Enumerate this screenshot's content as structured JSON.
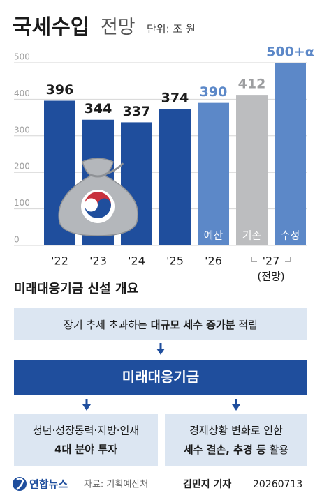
{
  "chart_data": {
    "type": "bar",
    "title": "국세수입",
    "title_light": "전망",
    "unit": "단위: 조 원",
    "categories": [
      "'22",
      "'23",
      "'24",
      "'25",
      "'26",
      null,
      null
    ],
    "group_label": "'27",
    "group_sublabel": "(전망)",
    "bar_labels": [
      null,
      null,
      null,
      null,
      "예산",
      "기존",
      "수정"
    ],
    "values": [
      396,
      344,
      337,
      374,
      390,
      412,
      500
    ],
    "value_labels": [
      "396",
      "344",
      "337",
      "374",
      "390",
      "412",
      "500+α"
    ],
    "colors": [
      "#1f4e9d",
      "#1f4e9d",
      "#1f4e9d",
      "#1f4e9d",
      "#5c88c8",
      "#bcbdbf",
      "#5c88c8"
    ],
    "label_colors": [
      "#1c1c1c",
      "#1c1c1c",
      "#1c1c1c",
      "#1c1c1c",
      "#5c88c8",
      "#9d9ea0",
      "#5c88c8"
    ],
    "ylim": [
      0,
      500
    ],
    "yticks": [
      0,
      100,
      200,
      300,
      400,
      500
    ],
    "grid": true
  },
  "overview": {
    "heading": "미래대응기금 신설 개요",
    "source_box": [
      "장기 추세 초과하는 ",
      "대규모 세수 증가분",
      " 적립"
    ],
    "fund_box": "미래대응기금",
    "left_box": [
      "청년·성장동력·지방·인재",
      "4대 분야 투자"
    ],
    "right_box": [
      "경제상황 변화로 인한",
      "세수 결손, 추경 등",
      " 활용"
    ]
  },
  "footer": {
    "logo": "연합뉴스",
    "source": "자료: 기획예산처",
    "reporter": "김민지 기자",
    "date": "20260713"
  }
}
